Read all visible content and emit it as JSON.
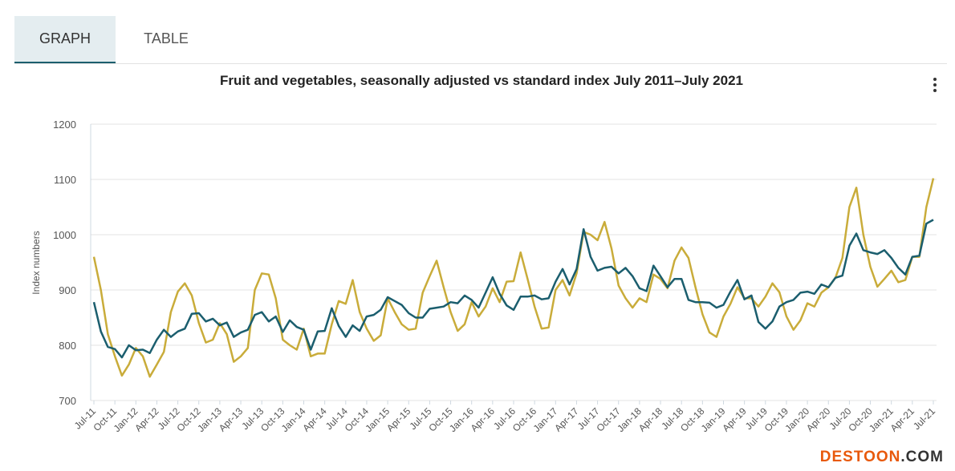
{
  "tabs": [
    {
      "label": "GRAPH",
      "active": true
    },
    {
      "label": "TABLE",
      "active": false
    }
  ],
  "menu_icon": "kebab-menu-icon",
  "watermark": "DESTOON.COM",
  "chart_data": {
    "type": "line",
    "title": "Fruit and vegetables, seasonally adjusted vs standard index July 2011–July 2021",
    "xlabel": "",
    "ylabel": "Index numbers",
    "ylim": [
      700,
      1200
    ],
    "yticks": [
      700,
      800,
      900,
      1000,
      1100,
      1200
    ],
    "grid": true,
    "x_tick_labels": [
      "Jul-11",
      "Oct-11",
      "Jan-12",
      "Apr-12",
      "Jul-12",
      "Oct-12",
      "Jan-13",
      "Apr-13",
      "Jul-13",
      "Oct-13",
      "Jan-14",
      "Apr-14",
      "Jul-14",
      "Oct-14",
      "Jan-15",
      "Apr-15",
      "Jul-15",
      "Oct-15",
      "Jan-16",
      "Apr-16",
      "Jul-16",
      "Oct-16",
      "Jan-17",
      "Apr-17",
      "Jul-17",
      "Oct-17",
      "Jan-18",
      "Apr-18",
      "Jul-18",
      "Oct-18",
      "Jan-19",
      "Apr-19",
      "Jul-19",
      "Oct-19",
      "Jan-20",
      "Apr-20",
      "Jul-20",
      "Oct-20",
      "Jan-21",
      "Apr-21",
      "Jul-21"
    ],
    "x_range": [
      "Jul-11",
      "Jul-21"
    ],
    "series": [
      {
        "color": "#1b5e6e",
        "values": [
          878,
          825,
          797,
          793,
          778,
          800,
          791,
          792,
          786,
          810,
          828,
          815,
          825,
          830,
          857,
          858,
          843,
          848,
          836,
          841,
          815,
          823,
          828,
          855,
          860,
          843,
          852,
          824,
          845,
          833,
          828,
          792,
          825,
          826,
          867,
          835,
          815,
          836,
          826,
          852,
          855,
          864,
          887,
          880,
          873,
          858,
          850,
          850,
          866,
          868,
          870,
          878,
          876,
          890,
          882,
          868,
          895,
          923,
          893,
          872,
          864,
          888,
          888,
          890,
          883,
          885,
          915,
          938,
          910,
          938,
          1010,
          960,
          935,
          940,
          942,
          930,
          940,
          925,
          903,
          898,
          944,
          925,
          905,
          920,
          920,
          882,
          878,
          878,
          877,
          868,
          873,
          897,
          918,
          883,
          890,
          842,
          830,
          843,
          870,
          878,
          882,
          895,
          897,
          893,
          910,
          905,
          922,
          926,
          980,
          1002,
          972,
          968,
          965,
          972,
          958,
          940,
          928,
          960,
          962,
          1020,
          1027
        ]
      },
      {
        "color": "#c9ac3a",
        "values": [
          960,
          900,
          820,
          780,
          745,
          765,
          795,
          780,
          743,
          765,
          788,
          860,
          897,
          912,
          890,
          840,
          805,
          810,
          840,
          820,
          770,
          780,
          795,
          900,
          930,
          928,
          885,
          810,
          800,
          792,
          830,
          780,
          785,
          785,
          838,
          880,
          875,
          918,
          860,
          830,
          808,
          818,
          885,
          860,
          838,
          828,
          830,
          895,
          925,
          953,
          905,
          860,
          826,
          838,
          878,
          852,
          870,
          903,
          878,
          915,
          916,
          968,
          920,
          870,
          830,
          832,
          900,
          918,
          890,
          930,
          1005,
          1000,
          990,
          1023,
          975,
          908,
          885,
          868,
          885,
          878,
          928,
          920,
          903,
          953,
          977,
          958,
          905,
          856,
          823,
          815,
          852,
          875,
          905,
          885,
          885,
          870,
          888,
          912,
          896,
          852,
          828,
          845,
          876,
          870,
          895,
          905,
          922,
          958,
          1050,
          1085,
          1000,
          942,
          906,
          920,
          935,
          914,
          918,
          960,
          960,
          1050,
          1102
        ]
      }
    ]
  }
}
